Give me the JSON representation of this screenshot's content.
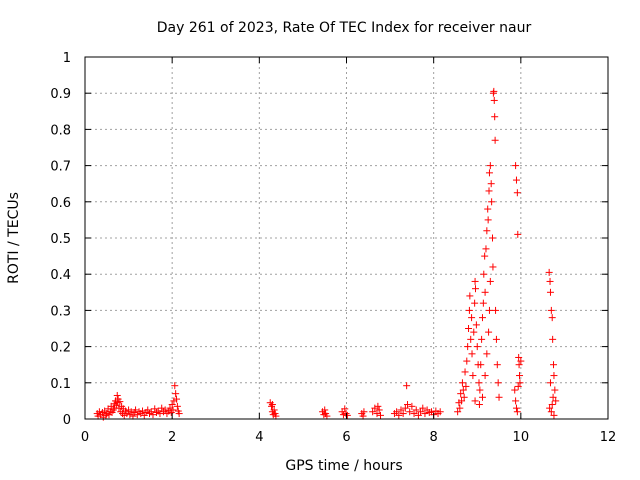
{
  "chart_data": {
    "type": "scatter",
    "title": "Day 261 of 2023, Rate Of TEC Index for receiver naur",
    "xlabel": "GPS time / hours",
    "ylabel": "ROTI / TECUs",
    "xlim": [
      0,
      12
    ],
    "ylim": [
      0,
      1
    ],
    "xticks": [
      "0",
      "2",
      "4",
      "6",
      "8",
      "10",
      "12"
    ],
    "yticks": [
      "0",
      "0.1",
      "0.2",
      "0.3",
      "0.4",
      "0.5",
      "0.6",
      "0.7",
      "0.8",
      "0.9",
      "1"
    ],
    "grid": true,
    "marker": "+",
    "color": "#ff0000",
    "points": [
      [
        0.28,
        0.015
      ],
      [
        0.3,
        0.008
      ],
      [
        0.33,
        0.02
      ],
      [
        0.36,
        0.012
      ],
      [
        0.4,
        0.018
      ],
      [
        0.42,
        0.005
      ],
      [
        0.45,
        0.022
      ],
      [
        0.48,
        0.01
      ],
      [
        0.5,
        0.015
      ],
      [
        0.53,
        0.028
      ],
      [
        0.55,
        0.012
      ],
      [
        0.58,
        0.02
      ],
      [
        0.6,
        0.035
      ],
      [
        0.62,
        0.018
      ],
      [
        0.65,
        0.025
      ],
      [
        0.67,
        0.042
      ],
      [
        0.68,
        0.03
      ],
      [
        0.7,
        0.05
      ],
      [
        0.72,
        0.038
      ],
      [
        0.74,
        0.065
      ],
      [
        0.75,
        0.045
      ],
      [
        0.76,
        0.055
      ],
      [
        0.78,
        0.03
      ],
      [
        0.8,
        0.048
      ],
      [
        0.82,
        0.02
      ],
      [
        0.84,
        0.035
      ],
      [
        0.86,
        0.015
      ],
      [
        0.88,
        0.028
      ],
      [
        0.9,
        0.01
      ],
      [
        0.93,
        0.022
      ],
      [
        0.96,
        0.015
      ],
      [
        1.0,
        0.025
      ],
      [
        1.03,
        0.012
      ],
      [
        1.06,
        0.02
      ],
      [
        1.1,
        0.008
      ],
      [
        1.13,
        0.018
      ],
      [
        1.16,
        0.025
      ],
      [
        1.2,
        0.012
      ],
      [
        1.24,
        0.02
      ],
      [
        1.28,
        0.015
      ],
      [
        1.32,
        0.022
      ],
      [
        1.36,
        0.01
      ],
      [
        1.4,
        0.018
      ],
      [
        1.44,
        0.025
      ],
      [
        1.48,
        0.015
      ],
      [
        1.52,
        0.02
      ],
      [
        1.56,
        0.012
      ],
      [
        1.6,
        0.028
      ],
      [
        1.64,
        0.018
      ],
      [
        1.68,
        0.022
      ],
      [
        1.72,
        0.015
      ],
      [
        1.76,
        0.03
      ],
      [
        1.8,
        0.02
      ],
      [
        1.84,
        0.025
      ],
      [
        1.88,
        0.015
      ],
      [
        1.92,
        0.022
      ],
      [
        1.95,
        0.03
      ],
      [
        1.98,
        0.018
      ],
      [
        2.0,
        0.04
      ],
      [
        2.02,
        0.025
      ],
      [
        2.04,
        0.05
      ],
      [
        2.06,
        0.092
      ],
      [
        2.08,
        0.07
      ],
      [
        2.1,
        0.055
      ],
      [
        2.12,
        0.035
      ],
      [
        2.14,
        0.022
      ],
      [
        2.16,
        0.015
      ],
      [
        4.25,
        0.045
      ],
      [
        4.28,
        0.035
      ],
      [
        4.3,
        0.02
      ],
      [
        4.32,
        0.012
      ],
      [
        4.34,
        0.025
      ],
      [
        4.36,
        0.015
      ],
      [
        4.38,
        0.008
      ],
      [
        4.3,
        0.04
      ],
      [
        5.45,
        0.02
      ],
      [
        5.48,
        0.012
      ],
      [
        5.5,
        0.025
      ],
      [
        5.52,
        0.015
      ],
      [
        5.55,
        0.008
      ],
      [
        5.9,
        0.02
      ],
      [
        5.93,
        0.012
      ],
      [
        5.96,
        0.028
      ],
      [
        5.99,
        0.015
      ],
      [
        6.02,
        0.01
      ],
      [
        6.35,
        0.015
      ],
      [
        6.38,
        0.008
      ],
      [
        6.4,
        0.02
      ],
      [
        6.6,
        0.02
      ],
      [
        6.65,
        0.03
      ],
      [
        6.7,
        0.015
      ],
      [
        6.72,
        0.035
      ],
      [
        6.75,
        0.025
      ],
      [
        6.78,
        0.01
      ],
      [
        7.1,
        0.015
      ],
      [
        7.15,
        0.02
      ],
      [
        7.2,
        0.01
      ],
      [
        7.25,
        0.025
      ],
      [
        7.3,
        0.015
      ],
      [
        7.35,
        0.03
      ],
      [
        7.38,
        0.092
      ],
      [
        7.4,
        0.04
      ],
      [
        7.45,
        0.02
      ],
      [
        7.5,
        0.035
      ],
      [
        7.55,
        0.015
      ],
      [
        7.6,
        0.025
      ],
      [
        7.65,
        0.01
      ],
      [
        7.7,
        0.02
      ],
      [
        7.75,
        0.03
      ],
      [
        7.8,
        0.015
      ],
      [
        7.85,
        0.025
      ],
      [
        7.9,
        0.018
      ],
      [
        7.95,
        0.02
      ],
      [
        8.0,
        0.012
      ],
      [
        8.05,
        0.022
      ],
      [
        8.1,
        0.015
      ],
      [
        8.15,
        0.02
      ],
      [
        8.55,
        0.02
      ],
      [
        8.58,
        0.045
      ],
      [
        8.6,
        0.03
      ],
      [
        8.62,
        0.07
      ],
      [
        8.64,
        0.05
      ],
      [
        8.66,
        0.1
      ],
      [
        8.68,
        0.08
      ],
      [
        8.7,
        0.06
      ],
      [
        8.72,
        0.13
      ],
      [
        8.74,
        0.09
      ],
      [
        8.76,
        0.16
      ],
      [
        8.78,
        0.2
      ],
      [
        8.8,
        0.25
      ],
      [
        8.82,
        0.3
      ],
      [
        8.83,
        0.34
      ],
      [
        8.85,
        0.22
      ],
      [
        8.87,
        0.28
      ],
      [
        8.88,
        0.18
      ],
      [
        8.9,
        0.12
      ],
      [
        8.92,
        0.24
      ],
      [
        8.94,
        0.32
      ],
      [
        8.95,
        0.38
      ],
      [
        8.96,
        0.36
      ],
      [
        8.98,
        0.26
      ],
      [
        9.0,
        0.2
      ],
      [
        9.02,
        0.15
      ],
      [
        9.04,
        0.1
      ],
      [
        9.06,
        0.08
      ],
      [
        9.08,
        0.15
      ],
      [
        9.1,
        0.22
      ],
      [
        9.12,
        0.28
      ],
      [
        9.14,
        0.32
      ],
      [
        9.15,
        0.4
      ],
      [
        9.17,
        0.45
      ],
      [
        9.18,
        0.35
      ],
      [
        9.2,
        0.47
      ],
      [
        9.22,
        0.52
      ],
      [
        9.24,
        0.58
      ],
      [
        9.25,
        0.55
      ],
      [
        9.27,
        0.63
      ],
      [
        9.28,
        0.68
      ],
      [
        9.3,
        0.7
      ],
      [
        9.32,
        0.65
      ],
      [
        9.33,
        0.6
      ],
      [
        9.35,
        0.5
      ],
      [
        9.36,
        0.42
      ],
      [
        9.37,
        0.9
      ],
      [
        9.38,
        0.905
      ],
      [
        9.39,
        0.88
      ],
      [
        9.4,
        0.835
      ],
      [
        9.41,
        0.77
      ],
      [
        9.42,
        0.3
      ],
      [
        9.44,
        0.22
      ],
      [
        9.46,
        0.15
      ],
      [
        9.48,
        0.1
      ],
      [
        9.5,
        0.06
      ],
      [
        9.3,
        0.38
      ],
      [
        9.28,
        0.3
      ],
      [
        9.26,
        0.24
      ],
      [
        9.22,
        0.18
      ],
      [
        9.18,
        0.12
      ],
      [
        9.12,
        0.06
      ],
      [
        9.05,
        0.04
      ],
      [
        8.95,
        0.05
      ],
      [
        9.88,
        0.7
      ],
      [
        9.9,
        0.66
      ],
      [
        9.92,
        0.625
      ],
      [
        9.93,
        0.51
      ],
      [
        9.95,
        0.17
      ],
      [
        9.96,
        0.15
      ],
      [
        9.97,
        0.12
      ],
      [
        9.98,
        0.1
      ],
      [
        9.86,
        0.08
      ],
      [
        9.88,
        0.05
      ],
      [
        9.9,
        0.03
      ],
      [
        9.92,
        0.02
      ],
      [
        10.0,
        0.16
      ],
      [
        9.94,
        0.09
      ],
      [
        10.65,
        0.405
      ],
      [
        10.67,
        0.38
      ],
      [
        10.68,
        0.35
      ],
      [
        10.7,
        0.3
      ],
      [
        10.72,
        0.28
      ],
      [
        10.73,
        0.22
      ],
      [
        10.75,
        0.15
      ],
      [
        10.76,
        0.12
      ],
      [
        10.78,
        0.08
      ],
      [
        10.8,
        0.05
      ],
      [
        10.66,
        0.03
      ],
      [
        10.68,
        0.1
      ],
      [
        10.7,
        0.02
      ],
      [
        10.72,
        0.04
      ],
      [
        10.74,
        0.06
      ],
      [
        10.76,
        0.01
      ]
    ]
  }
}
